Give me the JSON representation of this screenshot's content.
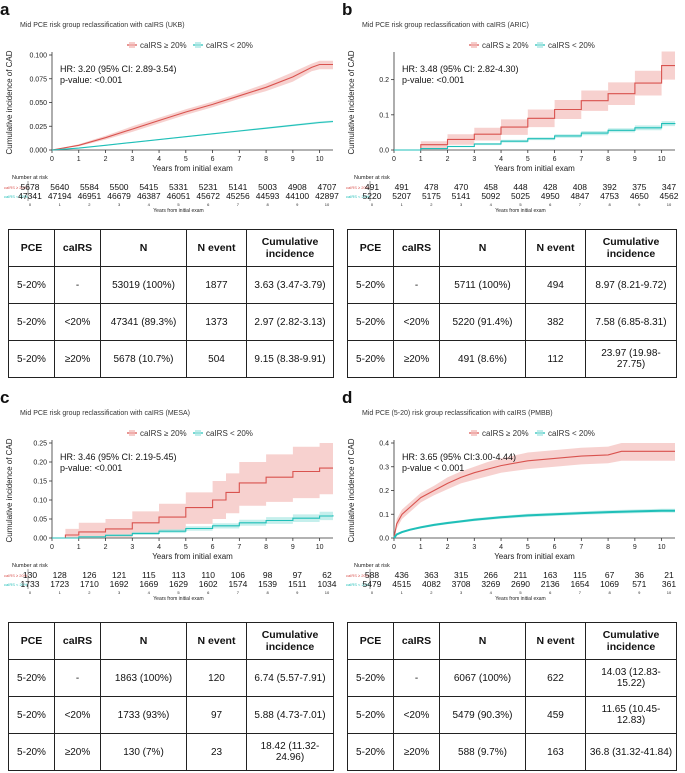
{
  "colors": {
    "high": "#d9534f",
    "low": "#1fbfb8",
    "high_fill": "#f2b8b5",
    "low_fill": "#a6e6e2"
  },
  "table_header": [
    "PCE",
    "caIRS",
    "N",
    "N event",
    "Cumulative incidence"
  ],
  "risk_row_labels": [
    "caIRS ≥ 20%",
    "caIRS < 20%"
  ],
  "panels": [
    {
      "letter": "a",
      "title": "Mid PCE risk group reclassification with caIRS (UKB)",
      "legend": [
        "caIRS ≥ 20%",
        "caIRS < 20%"
      ],
      "hr_text": "HR: 3.20 (95% CI: 2.89-3.54)",
      "p_text": "p-value: <0.001",
      "risk_title": "Number at risk",
      "risk_high": [
        "5678",
        "5640",
        "5584",
        "5500",
        "5415",
        "5331",
        "5231",
        "5141",
        "5003",
        "4908",
        "4707"
      ],
      "risk_low": [
        "47341",
        "47194",
        "46951",
        "46679",
        "46387",
        "46051",
        "45672",
        "45256",
        "44593",
        "44100",
        "42897"
      ],
      "table": [
        [
          "5-20%",
          "-",
          "53019 (100%)",
          "1877",
          "3.63 (3.47-3.79)"
        ],
        [
          "5-20%",
          "<20%",
          "47341 (89.3%)",
          "1373",
          "2.97 (2.82-3.13)"
        ],
        [
          "5-20%",
          "≥20%",
          "5678 (10.7%)",
          "504",
          "9.15 (8.38-9.91)"
        ]
      ]
    },
    {
      "letter": "b",
      "title": "Mid PCE risk group reclassification with caIRS (ARIC)",
      "legend": [
        "caIRS ≥ 20%",
        "caIRS < 20%"
      ],
      "hr_text": "HR: 3.48 (95% CI: 2.82-4.30)",
      "p_text": "p-value: <0.001",
      "risk_title": "Number at risk",
      "risk_high": [
        "491",
        "491",
        "478",
        "470",
        "458",
        "448",
        "428",
        "408",
        "392",
        "375",
        "347"
      ],
      "risk_low": [
        "5220",
        "5207",
        "5175",
        "5141",
        "5092",
        "5025",
        "4950",
        "4847",
        "4753",
        "4650",
        "4562"
      ],
      "table": [
        [
          "5-20%",
          "-",
          "5711 (100%)",
          "494",
          "8.97 (8.21-9.72)"
        ],
        [
          "5-20%",
          "<20%",
          "5220 (91.4%)",
          "382",
          "7.58 (6.85-8.31)"
        ],
        [
          "5-20%",
          "≥20%",
          "491 (8.6%)",
          "112",
          "23.97 (19.98-27.75)"
        ]
      ]
    },
    {
      "letter": "c",
      "title": "Mid PCE risk group reclassification with caIRS (MESA)",
      "legend": [
        "caIRS ≥ 20%",
        "caIRS < 20%"
      ],
      "hr_text": "HR: 3.46 (95% CI: 2.19-5.45)",
      "p_text": "p-value: <0.001",
      "risk_title": "Number at risk",
      "risk_high": [
        "130",
        "128",
        "126",
        "121",
        "115",
        "113",
        "110",
        "106",
        "98",
        "97",
        "62"
      ],
      "risk_low": [
        "1733",
        "1723",
        "1710",
        "1692",
        "1669",
        "1629",
        "1602",
        "1574",
        "1539",
        "1511",
        "1034"
      ],
      "table": [
        [
          "5-20%",
          "-",
          "1863 (100%)",
          "120",
          "6.74 (5.57-7.91)"
        ],
        [
          "5-20%",
          "<20%",
          "1733 (93%)",
          "97",
          "5.88 (4.73-7.01)"
        ],
        [
          "5-20%",
          "≥20%",
          "130 (7%)",
          "23",
          "18.42 (11.32-24.96)"
        ]
      ]
    },
    {
      "letter": "d",
      "title": "Mid PCE (5-20) risk group reclassification with caIRS (PMBB)",
      "legend": [
        "caIRS ≥ 20%",
        "caIRS < 20%"
      ],
      "hr_text": "HR: 3.65 (95% CI:3.00-4.44)",
      "p_text": "p-value < 0.001",
      "risk_title": "Number at risk",
      "risk_high": [
        "588",
        "436",
        "363",
        "315",
        "266",
        "211",
        "163",
        "115",
        "67",
        "36",
        "21"
      ],
      "risk_low": [
        "5479",
        "4515",
        "4082",
        "3708",
        "3269",
        "2690",
        "2136",
        "1654",
        "1069",
        "571",
        "361"
      ],
      "table": [
        [
          "5-20%",
          "-",
          "6067 (100%)",
          "622",
          "14.03 (12.83-15.22)"
        ],
        [
          "5-20%",
          "<20%",
          "5479 (90.3%)",
          "459",
          "11.65 (10.45-12.83)"
        ],
        [
          "5-20%",
          "≥20%",
          "588 (9.7%)",
          "163",
          "36.8 (31.32-41.84)"
        ]
      ]
    }
  ],
  "chart_data": [
    {
      "type": "line",
      "panel": "a",
      "title": "Mid PCE risk group reclassification with caIRS (UKB)",
      "xlabel": "Years from initial exam",
      "ylabel": "Cumulative incidence of CAD",
      "xlim": [
        0,
        10.5
      ],
      "ylim": [
        0,
        0.1
      ],
      "x_ticks": [
        0,
        1,
        2,
        3,
        4,
        5,
        6,
        7,
        8,
        9,
        10
      ],
      "y_ticks": [
        0,
        0.025,
        0.05,
        0.075,
        0.1
      ],
      "y_tick_labels": [
        "0.000",
        "0.025",
        "0.050",
        "0.075",
        "0.100"
      ],
      "step": false,
      "series": [
        {
          "name": "caIRS ≥ 20%",
          "x": [
            0,
            1,
            2,
            3,
            4,
            5,
            6,
            7,
            8,
            9,
            9.7,
            10,
            10.5
          ],
          "y": [
            0,
            0.005,
            0.013,
            0.022,
            0.031,
            0.04,
            0.048,
            0.057,
            0.066,
            0.077,
            0.087,
            0.09,
            0.09
          ],
          "lower": [
            0,
            0.004,
            0.011,
            0.019,
            0.028,
            0.037,
            0.045,
            0.054,
            0.062,
            0.072,
            0.083,
            0.085,
            0.085
          ],
          "upper": [
            0,
            0.006,
            0.015,
            0.025,
            0.034,
            0.043,
            0.051,
            0.06,
            0.07,
            0.082,
            0.091,
            0.094,
            0.094
          ]
        },
        {
          "name": "caIRS < 20%",
          "x": [
            0,
            1,
            2,
            3,
            4,
            5,
            6,
            7,
            8,
            9,
            10,
            10.5
          ],
          "y": [
            0,
            0.002,
            0.005,
            0.008,
            0.011,
            0.014,
            0.017,
            0.02,
            0.023,
            0.026,
            0.029,
            0.03
          ],
          "lower": [
            0,
            0.0018,
            0.0045,
            0.0075,
            0.0105,
            0.0134,
            0.0163,
            0.0192,
            0.0221,
            0.025,
            0.0279,
            0.0289
          ],
          "upper": [
            0,
            0.0022,
            0.0055,
            0.0085,
            0.0115,
            0.0146,
            0.0177,
            0.0208,
            0.0239,
            0.027,
            0.0301,
            0.0311
          ]
        }
      ]
    },
    {
      "type": "line",
      "panel": "b",
      "title": "Mid PCE risk group reclassification with caIRS (ARIC)",
      "xlabel": "Years from initial exam",
      "ylabel": "Cumulative incidence of CAD",
      "xlim": [
        0,
        10.5
      ],
      "ylim": [
        0,
        0.27
      ],
      "x_ticks": [
        0,
        1,
        2,
        3,
        4,
        5,
        6,
        7,
        8,
        9,
        10
      ],
      "y_ticks": [
        0,
        0.1,
        0.2
      ],
      "y_tick_labels": [
        "0.0",
        "0.1",
        "0.2"
      ],
      "step": true,
      "series": [
        {
          "name": "caIRS ≥ 20%",
          "x": [
            0,
            1,
            2,
            3,
            4,
            5,
            6,
            7,
            8,
            9,
            10,
            10.5
          ],
          "y": [
            0,
            0.015,
            0.03,
            0.045,
            0.065,
            0.09,
            0.115,
            0.14,
            0.16,
            0.19,
            0.24,
            0.24
          ],
          "lower": [
            0,
            0.005,
            0.015,
            0.027,
            0.043,
            0.065,
            0.088,
            0.111,
            0.128,
            0.155,
            0.2,
            0.2
          ],
          "upper": [
            0,
            0.025,
            0.045,
            0.063,
            0.087,
            0.115,
            0.142,
            0.169,
            0.192,
            0.225,
            0.28,
            0.28
          ]
        },
        {
          "name": "caIRS < 20%",
          "x": [
            0,
            1,
            2,
            3,
            4,
            5,
            6,
            7,
            8,
            9,
            10,
            10.5
          ],
          "y": [
            0,
            0.004,
            0.01,
            0.017,
            0.025,
            0.032,
            0.04,
            0.048,
            0.056,
            0.063,
            0.075,
            0.076
          ],
          "lower": [
            0,
            0.003,
            0.008,
            0.014,
            0.021,
            0.028,
            0.035,
            0.042,
            0.05,
            0.056,
            0.068,
            0.069
          ],
          "upper": [
            0,
            0.005,
            0.012,
            0.02,
            0.029,
            0.036,
            0.045,
            0.054,
            0.062,
            0.07,
            0.082,
            0.083
          ]
        }
      ]
    },
    {
      "type": "line",
      "panel": "c",
      "title": "Mid PCE risk group reclassification with caIRS (MESA)",
      "xlabel": "Years from initial exam",
      "ylabel": "Cumulative incidence of CAD",
      "xlim": [
        0,
        10.5
      ],
      "ylim": [
        0,
        0.25
      ],
      "x_ticks": [
        0,
        1,
        2,
        3,
        4,
        5,
        6,
        7,
        8,
        9,
        10
      ],
      "y_ticks": [
        0,
        0.05,
        0.1,
        0.15,
        0.2,
        0.25
      ],
      "y_tick_labels": [
        "0.00",
        "0.05",
        "0.10",
        "0.15",
        "0.20",
        "0.25"
      ],
      "step": true,
      "series": [
        {
          "name": "caIRS ≥ 20%",
          "x": [
            0,
            0.5,
            1,
            2,
            3,
            4,
            5,
            6,
            6.5,
            7,
            8,
            9,
            10,
            10.5
          ],
          "y": [
            0,
            0.008,
            0.016,
            0.024,
            0.04,
            0.055,
            0.08,
            0.1,
            0.12,
            0.145,
            0.16,
            0.175,
            0.184,
            0.184
          ],
          "lower": [
            0,
            0,
            0,
            0.001,
            0.01,
            0.02,
            0.037,
            0.05,
            0.065,
            0.085,
            0.095,
            0.105,
            0.115,
            0.115
          ],
          "upper": [
            0,
            0.024,
            0.04,
            0.05,
            0.07,
            0.09,
            0.12,
            0.15,
            0.17,
            0.2,
            0.22,
            0.24,
            0.25,
            0.25
          ]
        },
        {
          "name": "caIRS < 20%",
          "x": [
            0,
            1,
            2,
            3,
            4,
            5,
            6,
            7,
            8,
            9,
            10,
            10.5
          ],
          "y": [
            0,
            0.003,
            0.007,
            0.012,
            0.018,
            0.025,
            0.032,
            0.04,
            0.046,
            0.052,
            0.058,
            0.06
          ],
          "lower": [
            0,
            0.001,
            0.004,
            0.008,
            0.013,
            0.019,
            0.025,
            0.032,
            0.037,
            0.042,
            0.047,
            0.048
          ],
          "upper": [
            0,
            0.005,
            0.01,
            0.016,
            0.023,
            0.031,
            0.039,
            0.048,
            0.055,
            0.062,
            0.069,
            0.072
          ]
        }
      ]
    },
    {
      "type": "line",
      "panel": "d",
      "title": "Mid PCE (5-20) risk group reclassification with caIRS (PMBB)",
      "xlabel": "Years from initial exam",
      "ylabel": "Cumulative incidence of CAD",
      "xlim": [
        0,
        10.5
      ],
      "ylim": [
        0,
        0.4
      ],
      "x_ticks": [
        0,
        1,
        2,
        3,
        4,
        5,
        6,
        7,
        8,
        9,
        10
      ],
      "y_ticks": [
        0,
        0.1,
        0.2,
        0.3,
        0.4
      ],
      "y_tick_labels": [
        "0.0",
        "0.1",
        "0.2",
        "0.3",
        "0.4"
      ],
      "step": false,
      "series": [
        {
          "name": "caIRS ≥ 20%",
          "x": [
            0,
            0.1,
            0.3,
            0.6,
            1,
            1.5,
            2,
            2.5,
            3,
            3.5,
            4,
            5,
            6,
            7,
            8,
            8.5,
            9,
            10,
            10.5
          ],
          "y": [
            0,
            0.06,
            0.1,
            0.13,
            0.17,
            0.2,
            0.23,
            0.255,
            0.275,
            0.29,
            0.305,
            0.325,
            0.335,
            0.345,
            0.35,
            0.365,
            0.365,
            0.365,
            0.365
          ],
          "lower": [
            0,
            0.04,
            0.08,
            0.11,
            0.15,
            0.18,
            0.205,
            0.23,
            0.245,
            0.26,
            0.275,
            0.29,
            0.3,
            0.31,
            0.315,
            0.325,
            0.325,
            0.325,
            0.325
          ],
          "upper": [
            0,
            0.08,
            0.12,
            0.15,
            0.19,
            0.22,
            0.255,
            0.28,
            0.3,
            0.32,
            0.335,
            0.36,
            0.37,
            0.38,
            0.385,
            0.4,
            0.4,
            0.4,
            0.4
          ]
        },
        {
          "name": "caIRS < 20%",
          "x": [
            0,
            0.1,
            0.3,
            0.6,
            1,
            1.5,
            2,
            2.5,
            3,
            4,
            5,
            6,
            7,
            8,
            9,
            10,
            10.5
          ],
          "y": [
            0,
            0.015,
            0.025,
            0.035,
            0.045,
            0.055,
            0.063,
            0.07,
            0.077,
            0.087,
            0.095,
            0.1,
            0.105,
            0.109,
            0.112,
            0.115,
            0.115
          ],
          "lower": [
            0,
            0.012,
            0.021,
            0.031,
            0.04,
            0.05,
            0.058,
            0.065,
            0.071,
            0.081,
            0.088,
            0.093,
            0.098,
            0.101,
            0.104,
            0.107,
            0.107
          ],
          "upper": [
            0,
            0.018,
            0.029,
            0.039,
            0.05,
            0.06,
            0.068,
            0.075,
            0.083,
            0.093,
            0.102,
            0.107,
            0.112,
            0.117,
            0.12,
            0.123,
            0.123
          ]
        }
      ]
    }
  ]
}
